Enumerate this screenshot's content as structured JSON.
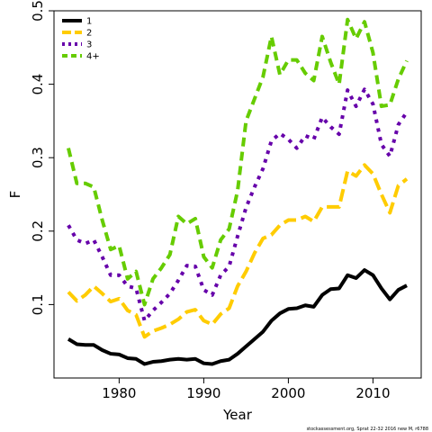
{
  "chart_data": {
    "type": "line",
    "title": "",
    "xlabel": "Year",
    "ylabel": "F",
    "xlim": [
      1972.3,
      2015.7
    ],
    "ylim": [
      0.0,
      0.5
    ],
    "xticks": [
      1980,
      1990,
      2000,
      2010
    ],
    "xtick_labels": [
      "1980",
      "1990",
      "2000",
      "2010"
    ],
    "yticks": [
      0.1,
      0.2,
      0.3,
      0.4,
      0.5
    ],
    "ytick_labels": [
      "0.1",
      "0.2",
      "0.3",
      "0.4",
      "0.5"
    ],
    "grid": false,
    "legend_position": "top-left",
    "x": [
      1974,
      1975,
      1976,
      1977,
      1978,
      1979,
      1980,
      1981,
      1982,
      1983,
      1984,
      1985,
      1986,
      1987,
      1988,
      1989,
      1990,
      1991,
      1992,
      1993,
      1994,
      1995,
      1996,
      1997,
      1998,
      1999,
      2000,
      2001,
      2002,
      2003,
      2004,
      2005,
      2006,
      2007,
      2008,
      2009,
      2010,
      2011,
      2012,
      2013,
      2014
    ],
    "series": [
      {
        "name": "1",
        "color": "#000000",
        "dash": "solid",
        "values": [
          0.053,
          0.046,
          0.045,
          0.045,
          0.038,
          0.033,
          0.032,
          0.027,
          0.026,
          0.019,
          0.022,
          0.023,
          0.025,
          0.026,
          0.025,
          0.026,
          0.02,
          0.019,
          0.023,
          0.025,
          0.033,
          0.043,
          0.053,
          0.063,
          0.078,
          0.088,
          0.094,
          0.095,
          0.099,
          0.097,
          0.113,
          0.121,
          0.122,
          0.14,
          0.136,
          0.147,
          0.14,
          0.122,
          0.107,
          0.12,
          0.126
        ]
      },
      {
        "name": "2",
        "color": "#FFCC00",
        "dash": "longdash",
        "values": [
          0.117,
          0.105,
          0.113,
          0.125,
          0.115,
          0.104,
          0.108,
          0.092,
          0.086,
          0.056,
          0.064,
          0.068,
          0.073,
          0.08,
          0.09,
          0.093,
          0.078,
          0.073,
          0.087,
          0.095,
          0.125,
          0.145,
          0.17,
          0.19,
          0.195,
          0.208,
          0.215,
          0.215,
          0.22,
          0.213,
          0.233,
          0.233,
          0.233,
          0.282,
          0.275,
          0.29,
          0.278,
          0.25,
          0.225,
          0.262,
          0.271
        ]
      },
      {
        "name": "3",
        "color": "#6600AA",
        "dash": "dotted",
        "values": [
          0.208,
          0.188,
          0.183,
          0.188,
          0.165,
          0.14,
          0.14,
          0.125,
          0.122,
          0.078,
          0.092,
          0.103,
          0.115,
          0.133,
          0.153,
          0.152,
          0.12,
          0.113,
          0.14,
          0.152,
          0.193,
          0.232,
          0.26,
          0.285,
          0.323,
          0.333,
          0.325,
          0.313,
          0.33,
          0.325,
          0.355,
          0.342,
          0.332,
          0.392,
          0.37,
          0.393,
          0.373,
          0.318,
          0.302,
          0.345,
          0.362
        ]
      },
      {
        "name": "4+",
        "color": "#66CC00",
        "dash": "dashed",
        "values": [
          0.313,
          0.265,
          0.265,
          0.26,
          0.215,
          0.175,
          0.18,
          0.135,
          0.145,
          0.1,
          0.135,
          0.15,
          0.168,
          0.22,
          0.21,
          0.217,
          0.165,
          0.15,
          0.188,
          0.203,
          0.255,
          0.35,
          0.38,
          0.41,
          0.465,
          0.413,
          0.433,
          0.433,
          0.415,
          0.405,
          0.465,
          0.43,
          0.4,
          0.488,
          0.462,
          0.485,
          0.443,
          0.37,
          0.372,
          0.407,
          0.432
        ]
      }
    ]
  },
  "footer_text": "stockassessment.org, Sprat 22-32 2016 new M, r6788"
}
